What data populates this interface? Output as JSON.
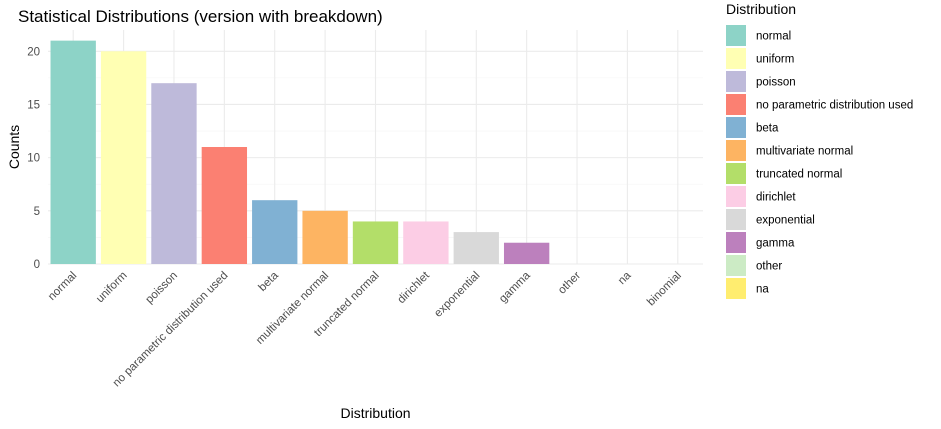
{
  "chart_data": {
    "type": "bar",
    "title": "Statistical Distributions (version with breakdown)",
    "xlabel": "Distribution",
    "ylabel": "Counts",
    "ylim": [
      0,
      22
    ],
    "yticks": [
      0,
      5,
      10,
      15,
      20
    ],
    "grid": true,
    "legend": {
      "title": "Distribution",
      "position": "right"
    },
    "categories": [
      "normal",
      "uniform",
      "poisson",
      "no parametric distribution used",
      "beta",
      "multivariate normal",
      "truncated normal",
      "dirichlet",
      "exponential",
      "gamma",
      "other",
      "na",
      "binomial"
    ],
    "values": [
      21,
      20,
      17,
      11,
      6,
      5,
      4,
      4,
      3,
      2,
      0,
      0,
      0
    ],
    "colors": [
      "#8DD3C7",
      "#FFFFB3",
      "#BEBADA",
      "#FB8072",
      "#80B1D3",
      "#FDB462",
      "#B3DE69",
      "#FCCDE5",
      "#D9D9D9",
      "#BC80BD",
      "#CCEBC5",
      "#FFED6F"
    ],
    "legend_entries": [
      "normal",
      "uniform",
      "poisson",
      "no parametric distribution used",
      "beta",
      "multivariate normal",
      "truncated normal",
      "dirichlet",
      "exponential",
      "gamma",
      "other",
      "na"
    ]
  }
}
